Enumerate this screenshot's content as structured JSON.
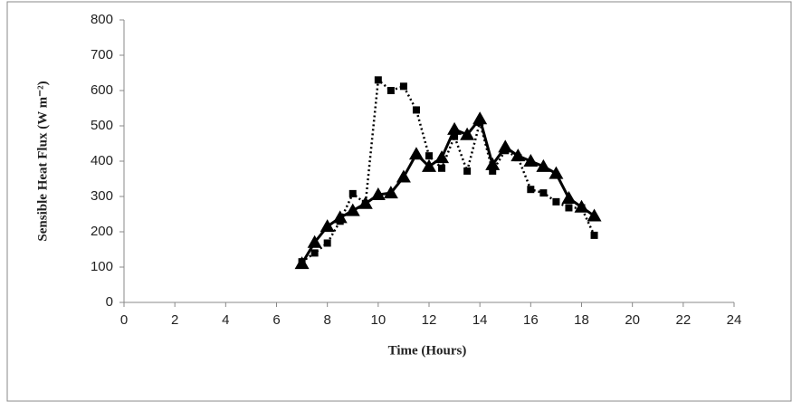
{
  "chart_data": {
    "type": "line",
    "x_label": "Time (Hours)",
    "y_label": "Sensible Heat Flux (W m⁻²)",
    "xlim": [
      0,
      24
    ],
    "xticks": [
      0,
      2,
      4,
      6,
      8,
      10,
      12,
      14,
      16,
      18,
      20,
      22,
      24
    ],
    "ylim": [
      0,
      800
    ],
    "yticks": [
      0,
      100,
      200,
      300,
      400,
      500,
      600,
      700,
      800
    ],
    "grid": false,
    "x": [
      7,
      7.5,
      8,
      8.5,
      9,
      9.5,
      10,
      10.5,
      11,
      11.5,
      12,
      12.5,
      13,
      13.5,
      14,
      14.5,
      15,
      15.5,
      16,
      16.5,
      17,
      17.5,
      18,
      18.5
    ],
    "series": [
      {
        "color": "#000000",
        "marker": "square",
        "dash": "dotted",
        "values": [
          115,
          140,
          168,
          230,
          308,
          280,
          630,
          600,
          612,
          545,
          415,
          380,
          470,
          372,
          510,
          372,
          430,
          410,
          320,
          310,
          285,
          268,
          268,
          190
        ]
      },
      {
        "color": "#000000",
        "marker": "triangle",
        "dash": "solid",
        "values": [
          110,
          170,
          215,
          240,
          260,
          280,
          305,
          310,
          355,
          420,
          385,
          410,
          490,
          475,
          520,
          390,
          440,
          415,
          400,
          385,
          365,
          295,
          270,
          245
        ]
      }
    ]
  }
}
